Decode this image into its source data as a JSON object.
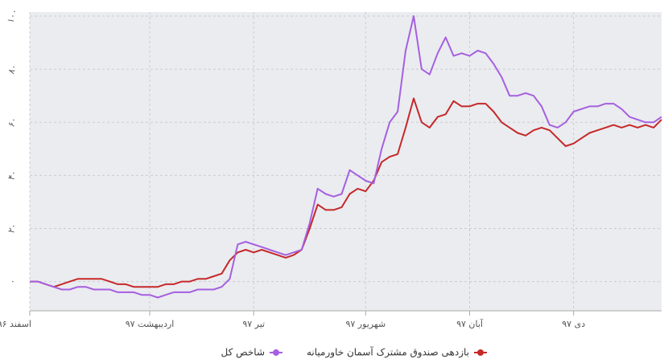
{
  "chart_data": {
    "type": "line",
    "categories": [
      "اسفند ۹۶",
      null,
      null,
      null,
      null,
      null,
      null,
      null,
      null,
      null,
      null,
      null,
      null,
      null,
      null,
      "اردیبهشت ۹۷",
      null,
      null,
      null,
      null,
      null,
      null,
      null,
      null,
      null,
      null,
      null,
      null,
      "تیر ۹۷",
      null,
      null,
      null,
      null,
      null,
      null,
      null,
      null,
      null,
      null,
      null,
      null,
      null,
      "شهریور ۹۷",
      null,
      null,
      null,
      null,
      null,
      null,
      null,
      null,
      null,
      null,
      null,
      null,
      "آبان ۹۷",
      null,
      null,
      null,
      null,
      null,
      null,
      null,
      null,
      null,
      null,
      null,
      null,
      "دی ۹۷",
      null,
      null,
      null,
      null,
      null,
      null,
      null,
      null,
      null,
      null,
      null
    ],
    "series": [
      {
        "name": "بازدهی صندوق مشترک آسمان خاورمیانه",
        "color": "#c62828",
        "values": [
          0,
          0,
          -1,
          -2,
          -1,
          0,
          1,
          1,
          1,
          1,
          0,
          -1,
          -1,
          -2,
          -2,
          -2,
          -2,
          -1,
          -1,
          0,
          0,
          1,
          1,
          2,
          3,
          8,
          11,
          12,
          11,
          12,
          11,
          10,
          9,
          10,
          12,
          20,
          29,
          27,
          27,
          28,
          33,
          35,
          34,
          38,
          45,
          47,
          48,
          58,
          69,
          60,
          58,
          62,
          63,
          68,
          66,
          66,
          67,
          67,
          64,
          60,
          58,
          56,
          55,
          57,
          58,
          57,
          54,
          51,
          52,
          54,
          56,
          57,
          58,
          59,
          58,
          59,
          58,
          59,
          58,
          61
        ]
      },
      {
        "name": "شاخص کل",
        "color": "#a65fe0",
        "values": [
          0,
          0,
          -1,
          -2,
          -3,
          -3,
          -2,
          -2,
          -3,
          -3,
          -3,
          -4,
          -4,
          -4,
          -5,
          -5,
          -6,
          -5,
          -4,
          -4,
          -4,
          -3,
          -3,
          -3,
          -2,
          1,
          14,
          15,
          14,
          13,
          12,
          11,
          10,
          11,
          12,
          22,
          35,
          33,
          32,
          33,
          42,
          40,
          38,
          37,
          50,
          60,
          64,
          87,
          100,
          80,
          78,
          86,
          92,
          85,
          86,
          85,
          87,
          86,
          82,
          77,
          70,
          70,
          71,
          70,
          66,
          59,
          58,
          60,
          64,
          65,
          66,
          66,
          67,
          67,
          65,
          62,
          61,
          60,
          60,
          62
        ]
      }
    ],
    "ylim": [
      -11,
      100
    ],
    "yticks": [
      {
        "value": 0,
        "label": "۰"
      },
      {
        "value": 20,
        "label": "۲۰"
      },
      {
        "value": 40,
        "label": "۴۰"
      },
      {
        "value": 60,
        "label": "۶۰"
      },
      {
        "value": 80,
        "label": "۸۰"
      },
      {
        "value": 100,
        "label": "۱۰۰"
      }
    ],
    "grid": true,
    "legend": "bottom"
  }
}
